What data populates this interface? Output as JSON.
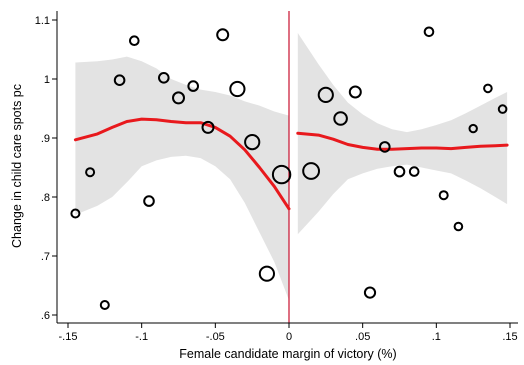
{
  "chart_data": {
    "type": "scatter",
    "title": "",
    "xlabel": "Female candidate margin of victory (%)",
    "ylabel": "Change in child care spots pc",
    "xlim": [
      -0.15,
      0.15
    ],
    "ylim": [
      0.6,
      1.1
    ],
    "x_ticks": [
      -0.15,
      -0.1,
      -0.05,
      0,
      0.05,
      0.1,
      0.15
    ],
    "x_tick_labels": [
      "-.15",
      "-.1",
      "-.05",
      "0",
      ".05",
      ".1",
      ".15"
    ],
    "y_ticks": [
      0.6,
      0.7,
      0.8,
      0.9,
      1.0,
      1.1
    ],
    "y_tick_labels": [
      ".6",
      ".7",
      ".8",
      ".9",
      "1",
      "1.1"
    ],
    "cutoff": 0,
    "grid": false,
    "colors": {
      "fit_line": "#e8191d",
      "confidence_band": "#e3e3e3",
      "cutoff_line": "#c8102e",
      "markers": "#000000"
    },
    "points": [
      {
        "x": -0.145,
        "y": 0.772,
        "weight": 1
      },
      {
        "x": -0.135,
        "y": 0.842,
        "weight": 1
      },
      {
        "x": -0.125,
        "y": 0.617,
        "weight": 1
      },
      {
        "x": -0.115,
        "y": 0.998,
        "weight": 1.5
      },
      {
        "x": -0.105,
        "y": 1.065,
        "weight": 1.2
      },
      {
        "x": -0.095,
        "y": 0.793,
        "weight": 1.5
      },
      {
        "x": -0.085,
        "y": 1.002,
        "weight": 1.5
      },
      {
        "x": -0.075,
        "y": 0.968,
        "weight": 2
      },
      {
        "x": -0.065,
        "y": 0.988,
        "weight": 1.5
      },
      {
        "x": -0.055,
        "y": 0.918,
        "weight": 2
      },
      {
        "x": -0.045,
        "y": 1.075,
        "weight": 2
      },
      {
        "x": -0.035,
        "y": 0.983,
        "weight": 3
      },
      {
        "x": -0.025,
        "y": 0.893,
        "weight": 3
      },
      {
        "x": -0.015,
        "y": 0.67,
        "weight": 3
      },
      {
        "x": -0.005,
        "y": 0.838,
        "weight": 4
      },
      {
        "x": 0.015,
        "y": 0.844,
        "weight": 3.5
      },
      {
        "x": 0.025,
        "y": 0.973,
        "weight": 3
      },
      {
        "x": 0.035,
        "y": 0.933,
        "weight": 2.5
      },
      {
        "x": 0.045,
        "y": 0.978,
        "weight": 2
      },
      {
        "x": 0.055,
        "y": 0.638,
        "weight": 1.7
      },
      {
        "x": 0.065,
        "y": 0.885,
        "weight": 1.5
      },
      {
        "x": 0.075,
        "y": 0.843,
        "weight": 1.5
      },
      {
        "x": 0.085,
        "y": 0.843,
        "weight": 1.2
      },
      {
        "x": 0.095,
        "y": 1.08,
        "weight": 1.2
      },
      {
        "x": 0.105,
        "y": 0.803,
        "weight": 1
      },
      {
        "x": 0.115,
        "y": 0.75,
        "weight": 0.9
      },
      {
        "x": 0.125,
        "y": 0.916,
        "weight": 0.8
      },
      {
        "x": 0.135,
        "y": 0.984,
        "weight": 0.9
      },
      {
        "x": 0.145,
        "y": 0.949,
        "weight": 0.9
      }
    ],
    "fit_left": {
      "x": [
        -0.145,
        -0.13,
        -0.12,
        -0.11,
        -0.1,
        -0.09,
        -0.08,
        -0.07,
        -0.06,
        -0.05,
        -0.04,
        -0.03,
        -0.02,
        -0.01,
        0
      ],
      "y": [
        0.897,
        0.907,
        0.918,
        0.928,
        0.932,
        0.931,
        0.928,
        0.926,
        0.926,
        0.918,
        0.903,
        0.88,
        0.85,
        0.818,
        0.78
      ],
      "lo": [
        0.77,
        0.785,
        0.8,
        0.825,
        0.852,
        0.862,
        0.868,
        0.87,
        0.866,
        0.852,
        0.83,
        0.79,
        0.74,
        0.69,
        0.625
      ],
      "hi": [
        1.028,
        1.03,
        1.033,
        1.038,
        1.03,
        1.018,
        1.0,
        0.99,
        0.982,
        0.978,
        0.972,
        0.962,
        0.955,
        0.945,
        0.938
      ]
    },
    "fit_right": {
      "x": [
        0.006,
        0.02,
        0.03,
        0.04,
        0.05,
        0.06,
        0.07,
        0.08,
        0.09,
        0.1,
        0.11,
        0.12,
        0.13,
        0.14,
        0.148
      ],
      "y": [
        0.908,
        0.905,
        0.898,
        0.889,
        0.884,
        0.881,
        0.881,
        0.882,
        0.883,
        0.883,
        0.882,
        0.884,
        0.886,
        0.887,
        0.888
      ],
      "lo": [
        0.737,
        0.775,
        0.805,
        0.83,
        0.84,
        0.848,
        0.852,
        0.855,
        0.85,
        0.845,
        0.84,
        0.828,
        0.815,
        0.8,
        0.788
      ],
      "hi": [
        1.078,
        1.025,
        0.99,
        0.96,
        0.94,
        0.925,
        0.915,
        0.91,
        0.915,
        0.922,
        0.93,
        0.942,
        0.955,
        0.968,
        0.978
      ]
    }
  }
}
